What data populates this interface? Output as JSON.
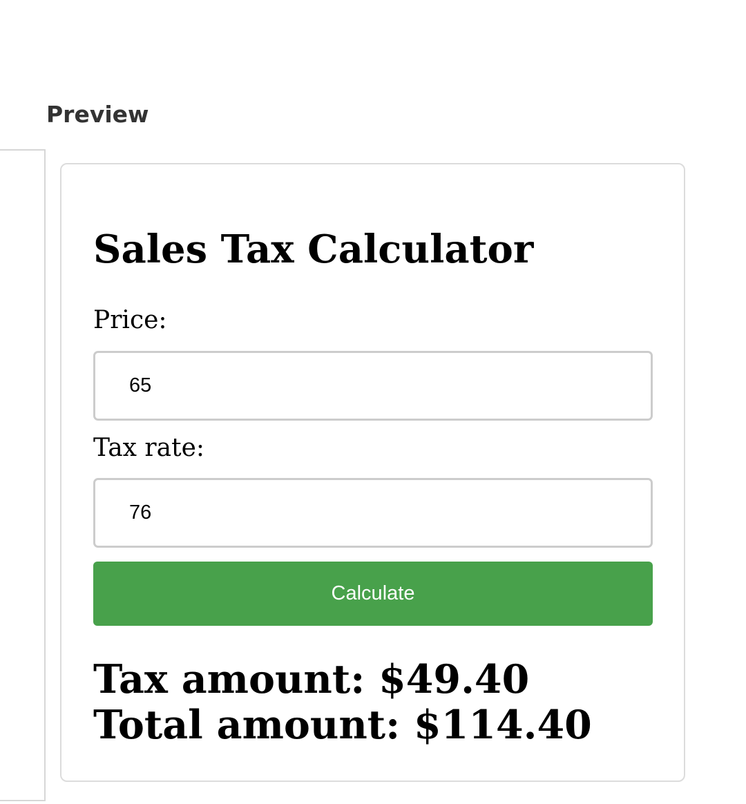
{
  "header": {
    "preview_label": "Preview"
  },
  "calculator": {
    "title": "Sales Tax Calculator",
    "price_label": "Price:",
    "price_value": "65",
    "tax_rate_label": "Tax rate:",
    "tax_rate_value": "76",
    "calculate_label": "Calculate",
    "tax_amount": "Tax amount: $49.40",
    "total_amount": "Total amount: $114.40",
    "button_color": "#48a14b"
  }
}
